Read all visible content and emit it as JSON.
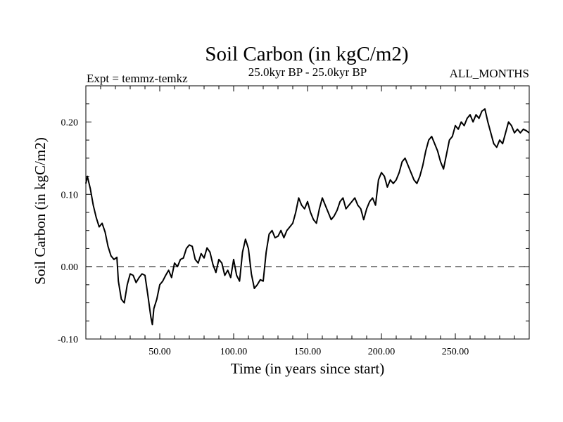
{
  "chart_data": {
    "type": "line",
    "title": "Soil Carbon (in kgC/m2)",
    "subtitle_left": "Expt = temmz-temkz",
    "subtitle_center": "25.0kyr BP - 25.0kyr BP",
    "subtitle_right": "ALL_MONTHS",
    "xlabel": "Time (in years since start)",
    "ylabel": "Soil Carbon (in kgC/m2)",
    "xlim": [
      0,
      300
    ],
    "ylim": [
      -0.1,
      0.25
    ],
    "x_ticks": [
      50,
      100,
      150,
      200,
      250
    ],
    "x_tick_labels": [
      "50.00",
      "100.00",
      "150.00",
      "200.00",
      "250.00"
    ],
    "y_ticks": [
      -0.1,
      0.0,
      0.1,
      0.2
    ],
    "y_tick_labels": [
      "-0.10",
      "0.00",
      "0.10",
      "0.20"
    ],
    "reference_line": {
      "y": 0.0,
      "style": "dashed"
    },
    "series": [
      {
        "name": "Soil Carbon",
        "x": [
          0,
          1,
          3,
          5,
          7,
          9,
          11,
          13,
          15,
          17,
          19,
          21,
          22,
          24,
          26,
          28,
          30,
          32,
          34,
          36,
          38,
          40,
          42,
          44,
          45,
          46,
          48,
          50,
          52,
          54,
          56,
          58,
          60,
          62,
          64,
          66,
          68,
          70,
          72,
          74,
          76,
          78,
          80,
          82,
          84,
          86,
          88,
          90,
          92,
          94,
          96,
          98,
          100,
          102,
          104,
          106,
          108,
          110,
          112,
          114,
          116,
          118,
          120,
          122,
          124,
          126,
          128,
          130,
          132,
          134,
          136,
          138,
          140,
          142,
          144,
          146,
          148,
          150,
          152,
          154,
          156,
          158,
          160,
          162,
          164,
          166,
          168,
          170,
          172,
          174,
          176,
          178,
          180,
          182,
          184,
          186,
          188,
          190,
          192,
          194,
          196,
          198,
          200,
          202,
          204,
          206,
          208,
          210,
          212,
          214,
          216,
          218,
          220,
          222,
          224,
          226,
          228,
          230,
          232,
          234,
          236,
          238,
          240,
          242,
          244,
          246,
          248,
          250,
          252,
          254,
          256,
          258,
          260,
          262,
          264,
          266,
          268,
          270,
          272,
          274,
          276,
          278,
          280,
          282,
          284,
          286,
          288,
          290,
          292,
          294,
          296,
          298,
          300
        ],
        "values": [
          0.115,
          0.125,
          0.108,
          0.085,
          0.068,
          0.055,
          0.06,
          0.048,
          0.028,
          0.015,
          0.01,
          0.013,
          -0.02,
          -0.045,
          -0.05,
          -0.025,
          -0.01,
          -0.012,
          -0.022,
          -0.015,
          -0.01,
          -0.012,
          -0.04,
          -0.07,
          -0.08,
          -0.058,
          -0.045,
          -0.025,
          -0.02,
          -0.012,
          -0.005,
          -0.015,
          0.005,
          0.0,
          0.01,
          0.012,
          0.025,
          0.03,
          0.028,
          0.01,
          0.005,
          0.018,
          0.012,
          0.026,
          0.02,
          0.003,
          -0.008,
          0.01,
          0.005,
          -0.012,
          -0.005,
          -0.015,
          0.01,
          -0.012,
          -0.02,
          0.02,
          0.038,
          0.025,
          -0.01,
          -0.03,
          -0.025,
          -0.018,
          -0.02,
          0.02,
          0.045,
          0.05,
          0.04,
          0.042,
          0.05,
          0.04,
          0.05,
          0.055,
          0.06,
          0.075,
          0.095,
          0.085,
          0.08,
          0.09,
          0.075,
          0.065,
          0.06,
          0.08,
          0.095,
          0.085,
          0.075,
          0.065,
          0.07,
          0.078,
          0.09,
          0.095,
          0.08,
          0.085,
          0.09,
          0.095,
          0.085,
          0.08,
          0.065,
          0.08,
          0.09,
          0.095,
          0.085,
          0.12,
          0.13,
          0.125,
          0.11,
          0.12,
          0.115,
          0.12,
          0.13,
          0.145,
          0.15,
          0.14,
          0.13,
          0.12,
          0.115,
          0.125,
          0.14,
          0.16,
          0.175,
          0.18,
          0.17,
          0.16,
          0.145,
          0.135,
          0.155,
          0.175,
          0.18,
          0.195,
          0.19,
          0.2,
          0.195,
          0.205,
          0.21,
          0.2,
          0.21,
          0.205,
          0.215,
          0.218,
          0.2,
          0.185,
          0.17,
          0.165,
          0.175,
          0.17,
          0.185,
          0.2,
          0.195,
          0.185,
          0.19,
          0.185,
          0.19,
          0.188,
          0.185
        ]
      }
    ]
  }
}
